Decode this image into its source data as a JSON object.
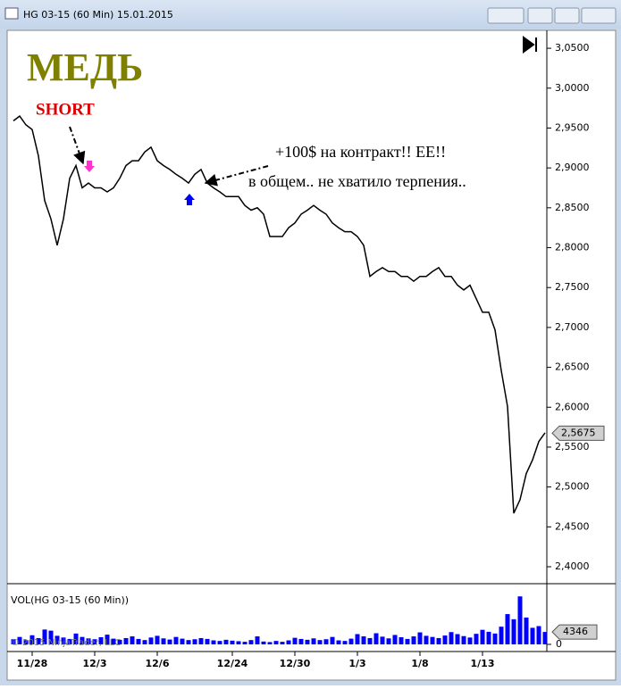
{
  "window_title": "HG 03-15 (60 Min)  15.01.2015",
  "chart_data": [
    {
      "type": "line",
      "color": "#000000",
      "annotations": [
        "МЕДЬ",
        "SHORT",
        "+100$ на контракт!! ЕЕ!!",
        "в общем.. не хватило терпения.."
      ],
      "categories": [
        null,
        null,
        null,
        "11/28",
        null,
        null,
        null,
        null,
        null,
        null,
        null,
        null,
        null,
        "12/3",
        null,
        null,
        null,
        null,
        null,
        null,
        null,
        null,
        null,
        "12/6",
        null,
        null,
        null,
        null,
        null,
        null,
        null,
        null,
        null,
        null,
        null,
        "12/24",
        null,
        null,
        null,
        null,
        null,
        null,
        null,
        null,
        null,
        "12/30",
        null,
        null,
        null,
        null,
        null,
        null,
        null,
        null,
        null,
        "1/3",
        null,
        null,
        null,
        null,
        null,
        null,
        null,
        null,
        null,
        "1/8",
        null,
        null,
        null,
        null,
        null,
        null,
        null,
        null,
        null,
        "1/13",
        null,
        null,
        null,
        null,
        null,
        null,
        null,
        null,
        null,
        null
      ],
      "values": [
        2.959,
        2.965,
        2.954,
        2.948,
        2.915,
        2.859,
        2.836,
        2.803,
        2.836,
        2.887,
        2.903,
        2.875,
        2.881,
        2.875,
        2.875,
        2.87,
        2.875,
        2.887,
        2.903,
        2.909,
        2.909,
        2.92,
        2.926,
        2.909,
        2.903,
        2.898,
        2.892,
        2.887,
        2.881,
        2.892,
        2.898,
        2.881,
        2.875,
        2.87,
        2.864,
        2.864,
        2.864,
        2.853,
        2.847,
        2.85,
        2.842,
        2.814,
        2.814,
        2.814,
        2.825,
        2.831,
        2.842,
        2.847,
        2.853,
        2.847,
        2.842,
        2.831,
        2.825,
        2.82,
        2.82,
        2.814,
        2.803,
        2.764,
        2.77,
        2.775,
        2.77,
        2.77,
        2.764,
        2.764,
        2.758,
        2.764,
        2.764,
        2.77,
        2.775,
        2.764,
        2.764,
        2.753,
        2.747,
        2.753,
        2.736,
        2.719,
        2.719,
        2.697,
        2.646,
        2.601,
        2.467,
        2.484,
        2.517,
        2.534,
        2.557,
        2.568
      ],
      "ylim": [
        2.381,
        3.068
      ],
      "yticks": [
        {
          "value": 2.4,
          "label": "2,4000"
        },
        {
          "value": 2.45,
          "label": "2,4500"
        },
        {
          "value": 2.5,
          "label": "2,5000"
        },
        {
          "value": 2.55,
          "label": "2,5500"
        },
        {
          "value": 2.6,
          "label": "2,6000"
        },
        {
          "value": 2.65,
          "label": "2,6500"
        },
        {
          "value": 2.7,
          "label": "2,7000"
        },
        {
          "value": 2.75,
          "label": "2,7500"
        },
        {
          "value": 2.8,
          "label": "2,8000"
        },
        {
          "value": 2.85,
          "label": "2,8500"
        },
        {
          "value": 2.9,
          "label": "2,9000"
        },
        {
          "value": 2.95,
          "label": "2,9500"
        },
        {
          "value": 3.0,
          "label": "3,0000"
        },
        {
          "value": 3.05,
          "label": "3,0500"
        }
      ],
      "last_price": {
        "value": 2.5675,
        "label": "2,5675"
      }
    },
    {
      "type": "bar",
      "title": "VOL(HG 03-15 (60 Min))",
      "color": "#0000ff",
      "copyright": "© 2015 NinjaTrader, LLC",
      "values": [
        1800,
        2600,
        1500,
        3200,
        2200,
        5200,
        4800,
        3000,
        2400,
        1900,
        3800,
        2600,
        2100,
        1800,
        2500,
        3400,
        2000,
        1600,
        2200,
        2800,
        1900,
        1500,
        2400,
        3000,
        2100,
        1700,
        2600,
        2000,
        1500,
        1800,
        2200,
        1900,
        1400,
        1200,
        1600,
        1300,
        1100,
        900,
        1500,
        2800,
        1000,
        800,
        1200,
        900,
        1400,
        2300,
        1900,
        1600,
        2100,
        1500,
        1800,
        2600,
        1400,
        1200,
        2000,
        3600,
        2800,
        2200,
        3900,
        2700,
        2100,
        3300,
        2500,
        1900,
        2800,
        4200,
        3000,
        2600,
        2200,
        3100,
        4300,
        3600,
        2900,
        2400,
        3700,
        5100,
        4400,
        3800,
        6200,
        10600,
        8800,
        16800,
        9400,
        5800,
        6400,
        4346
      ],
      "ylim": [
        0,
        20000
      ],
      "yticks": [
        0
      ],
      "last_value": 4346
    }
  ]
}
